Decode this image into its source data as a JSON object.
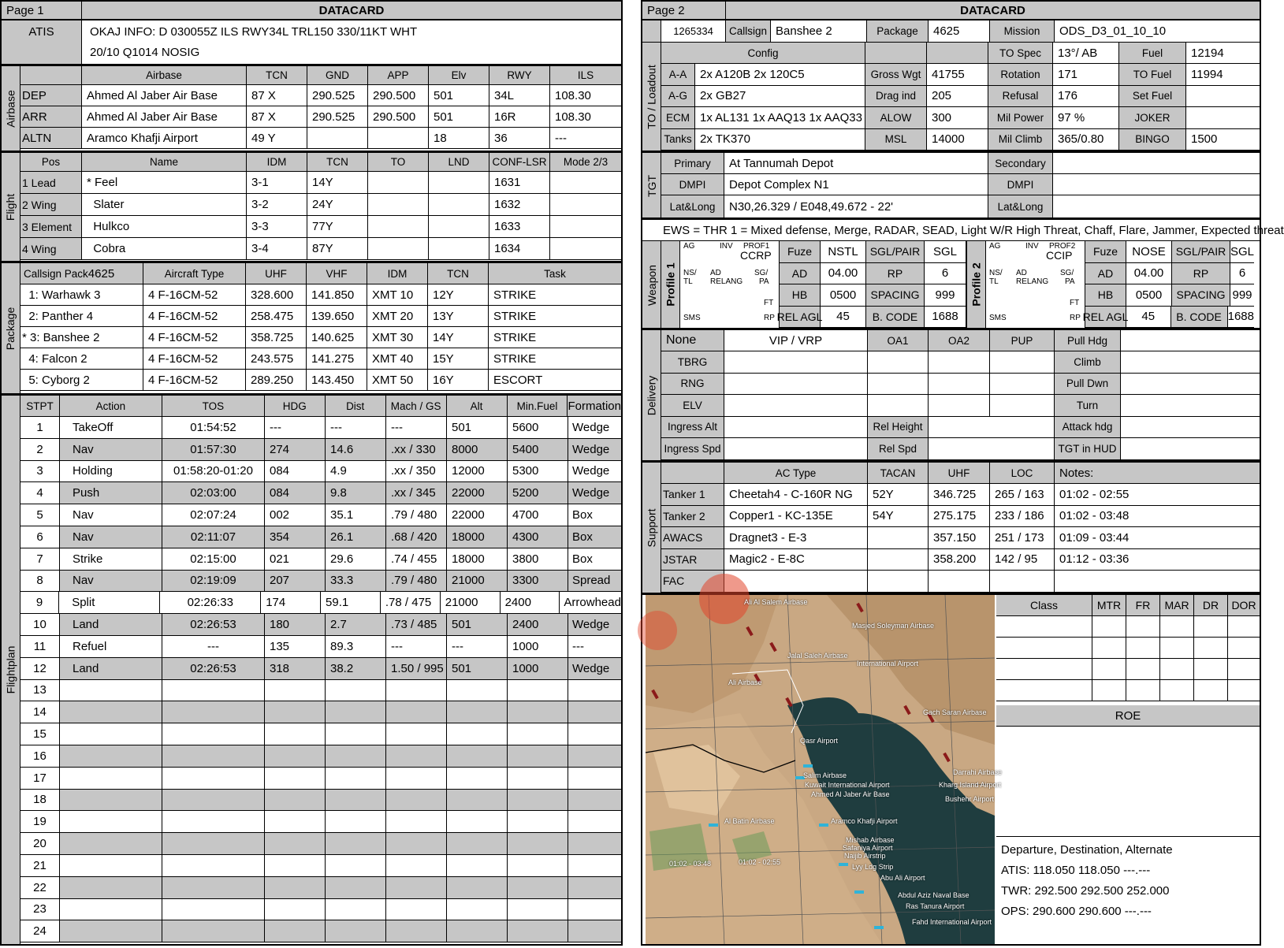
{
  "page1": {
    "page_label": "Page 1",
    "title": "DATACARD",
    "atis": {
      "label": "ATIS",
      "line1": "OKAJ INFO: D 030055Z ILS RWY34L TRL150 330/11KT WHT",
      "line2": "20/10 Q1014  NOSIG"
    },
    "airbase": {
      "section": "Airbase",
      "headers": [
        "",
        "Airbase",
        "TCN",
        "GND",
        "APP",
        "Elv",
        "RWY",
        "ILS"
      ],
      "rows": [
        [
          "DEP",
          "Ahmed Al Jaber Air Base",
          "87 X",
          "290.525",
          "290.500",
          "501",
          "34L",
          "108.30"
        ],
        [
          "ARR",
          "Ahmed Al Jaber Air Base",
          "87 X",
          "290.525",
          "290.500",
          "501",
          "16R",
          "108.30"
        ],
        [
          "ALTN",
          "Aramco Khafji Airport",
          "49 Y",
          "",
          "",
          "18",
          "36",
          "---"
        ]
      ]
    },
    "flight": {
      "section": "Flight",
      "headers": [
        "Pos",
        "Name",
        "IDM",
        "TCN",
        "TO",
        "LND",
        "CONF-LSR",
        "Mode 2/3"
      ],
      "rows": [
        [
          "1 Lead",
          "* Feel",
          "3-1",
          "14Y",
          "",
          "",
          "1631",
          ""
        ],
        [
          "2 Wing",
          "  Slater",
          "3-2",
          "24Y",
          "",
          "",
          "1632",
          ""
        ],
        [
          "3 Element",
          "  Hulkco",
          "3-3",
          "77Y",
          "",
          "",
          "1633",
          ""
        ],
        [
          "4 Wing",
          "  Cobra",
          "3-4",
          "87Y",
          "",
          "",
          "1634",
          ""
        ]
      ]
    },
    "package": {
      "section": "Package",
      "callsign_label": "Callsign Pack",
      "callsign_num": "4625",
      "headers": [
        "Aircraft Type",
        "UHF",
        "VHF",
        "IDM",
        "TCN",
        "Task"
      ],
      "rows": [
        [
          "  1: Warhawk 3",
          "4 F-16CM-52",
          "328.600",
          "141.850",
          "XMT 10",
          "12Y",
          "STRIKE"
        ],
        [
          "  2: Panther 4",
          "4 F-16CM-52",
          "258.475",
          "139.650",
          "XMT 20",
          "13Y",
          "STRIKE"
        ],
        [
          "* 3: Banshee 2",
          "4 F-16CM-52",
          "358.725",
          "140.625",
          "XMT 30",
          "14Y",
          "STRIKE"
        ],
        [
          "  4: Falcon 2",
          "4 F-16CM-52",
          "243.575",
          "141.275",
          "XMT 40",
          "15Y",
          "STRIKE"
        ],
        [
          "  5: Cyborg 2",
          "4 F-16CM-52",
          "289.250",
          "143.450",
          "XMT 50",
          "16Y",
          "ESCORT"
        ]
      ]
    },
    "flightplan": {
      "section": "Flightplan",
      "headers": [
        "STPT",
        "Action",
        "TOS",
        "HDG",
        "Dist",
        "Mach / GS",
        "Alt",
        "Min.Fuel",
        "Formation"
      ],
      "rows": [
        [
          "1",
          "TakeOff",
          "01:54:52",
          "---",
          "---",
          "---",
          "501",
          "5600",
          "Wedge"
        ],
        [
          "2",
          "Nav",
          "01:57:30",
          "274",
          "14.6",
          ".xx / 330",
          "8000",
          "5400",
          "Wedge"
        ],
        [
          "3",
          "Holding",
          "01:58:20-01:20",
          "084",
          "4.9",
          ".xx / 350",
          "12000",
          "5300",
          "Wedge"
        ],
        [
          "4",
          "Push",
          "02:03:00",
          "084",
          "9.8",
          ".xx / 345",
          "22000",
          "5200",
          "Wedge"
        ],
        [
          "5",
          "Nav",
          "02:07:24",
          "002",
          "35.1",
          ".79 / 480",
          "22000",
          "4700",
          "Box"
        ],
        [
          "6",
          "Nav",
          "02:11:07",
          "354",
          "26.1",
          ".68 / 420",
          "18000",
          "4300",
          "Box"
        ],
        [
          "7",
          "Strike",
          "02:15:00",
          "021",
          "29.6",
          ".74 / 455",
          "18000",
          "3800",
          "Box"
        ],
        [
          "8",
          "Nav",
          "02:19:09",
          "207",
          "33.3",
          ".79 / 480",
          "21000",
          "3300",
          "Spread"
        ],
        [
          "9",
          "Split",
          "02:26:33",
          "174",
          "59.1",
          ".78 / 475",
          "21000",
          "2400",
          "Arrowhead"
        ],
        [
          "10",
          "Land",
          "02:26:53",
          "180",
          "2.7",
          ".73 / 485",
          "501",
          "2400",
          "Wedge"
        ],
        [
          "11",
          "Refuel",
          "---",
          "135",
          "89.3",
          "---",
          "---",
          "1000",
          "---"
        ],
        [
          "12",
          "Land",
          "02:26:53",
          "318",
          "38.2",
          "1.50 / 995",
          "501",
          "1000",
          "Wedge"
        ],
        [
          "13",
          "",
          "",
          "",
          "",
          "",
          "",
          "",
          ""
        ],
        [
          "14",
          "",
          "",
          "",
          "",
          "",
          "",
          "",
          ""
        ],
        [
          "15",
          "",
          "",
          "",
          "",
          "",
          "",
          "",
          ""
        ],
        [
          "16",
          "",
          "",
          "",
          "",
          "",
          "",
          "",
          ""
        ],
        [
          "17",
          "",
          "",
          "",
          "",
          "",
          "",
          "",
          ""
        ],
        [
          "18",
          "",
          "",
          "",
          "",
          "",
          "",
          "",
          ""
        ],
        [
          "19",
          "",
          "",
          "",
          "",
          "",
          "",
          "",
          ""
        ],
        [
          "20",
          "",
          "",
          "",
          "",
          "",
          "",
          "",
          ""
        ],
        [
          "21",
          "",
          "",
          "",
          "",
          "",
          "",
          "",
          ""
        ],
        [
          "22",
          "",
          "",
          "",
          "",
          "",
          "",
          "",
          ""
        ],
        [
          "23",
          "",
          "",
          "",
          "",
          "",
          "",
          "",
          ""
        ],
        [
          "24",
          "",
          "",
          "",
          "",
          "",
          "",
          "",
          ""
        ]
      ]
    }
  },
  "page2": {
    "page_label": "Page 2",
    "title": "DATACARD",
    "header": {
      "id": "1265334",
      "callsign_label": "Callsign",
      "callsign": "Banshee 2",
      "package_label": "Package",
      "package": "4625",
      "mission_label": "Mission",
      "mission": "ODS_D3_01_10_10"
    },
    "loadout": {
      "section": "TO / Loadout",
      "config_label": "Config",
      "rows": [
        [
          "A-A",
          "2x A120B 2x 120C5",
          "Gross Wgt",
          "41755",
          "Rotation",
          "171",
          "TO Fuel",
          "11994"
        ],
        [
          "A-G",
          "2x GB27",
          "Drag ind",
          "205",
          "Refusal",
          "176",
          "Set Fuel",
          ""
        ],
        [
          "ECM",
          "1x AL131 1x AAQ13 1x AAQ33",
          "ALOW",
          "300",
          "Mil Power",
          "97 %",
          "JOKER",
          ""
        ],
        [
          "Tanks",
          "2x TK370",
          "MSL",
          "14000",
          "Mil Climb",
          "365/0.80",
          "BINGO",
          "1500"
        ]
      ],
      "to_spec_label": "TO Spec",
      "to_spec": "13°/ AB",
      "fuel_label": "Fuel",
      "fuel": "12194"
    },
    "tgt": {
      "section": "TGT",
      "primary_label": "Primary",
      "primary": "At Tannumah Depot",
      "dmpi_label": "DMPI",
      "dmpi": "Depot Complex N1",
      "latlong_label": "Lat&Long",
      "latlong": "N30,26.329 / E048,49.672 - 22'",
      "secondary_label": "Secondary",
      "dmpi2_label": "DMPI",
      "latlong2_label": "Lat&Long"
    },
    "ews": {
      "text": "EWS = THR 1 = Mixed defense, Merge, RADAR, SEAD, Light W/R High Threat, Chaff, Flare, Jammer, Expected threat"
    },
    "weapon": {
      "section": "Weapon",
      "p1": {
        "label": "Profile 1",
        "ag": "AG",
        "inv": "INV",
        "prof": "PROF1",
        "mode": "CCRP",
        "ns": "NS/",
        "tl": "TL",
        "ad": "AD",
        "relang": "RELANG",
        "sg": "SG/",
        "pa": "PA",
        "ft": "FT",
        "sms": "SMS",
        "rp": "RP",
        "fuze_label": "Fuze",
        "fuze": "NSTL",
        "sgl_label": "SGL/PAIR",
        "sgl": "SGL",
        "ad_label": "AD",
        "ad_val": "04.00",
        "rp_label": "RP",
        "rp_val": "6",
        "hb_label": "HB",
        "hb": "0500",
        "spacing_label": "SPACING",
        "spacing": "999",
        "relagl_label": "REL AGL",
        "relagl": "45",
        "bcode_label": "B. CODE",
        "bcode": "1688"
      },
      "p2": {
        "label": "Profile 2",
        "ag": "AG",
        "inv": "INV",
        "prof": "PROF2",
        "mode": "CCIP",
        "ns": "NS/",
        "tl": "TL",
        "ad": "AD",
        "relang": "RELANG",
        "sg": "SG/",
        "pa": "PA",
        "ft": "FT",
        "sms": "SMS",
        "rp": "RP",
        "fuze_label": "Fuze",
        "fuze": "NOSE",
        "sgl_label": "SGL/PAIR",
        "sgl": "SGL",
        "ad_label": "AD",
        "ad_val": "04.00",
        "rp_label": "RP",
        "rp_val": "6",
        "hb_label": "HB",
        "hb": "0500",
        "spacing_label": "SPACING",
        "spacing": "999",
        "relagl_label": "REL AGL",
        "relagl": "45",
        "bcode_label": "B. CODE",
        "bcode": "1688"
      }
    },
    "delivery": {
      "section": "Delivery",
      "none": "None",
      "vip": "VIP / VRP",
      "oa1": "OA1",
      "oa2": "OA2",
      "pup": "PUP",
      "pull_hdg": "Pull Hdg",
      "rows": [
        "TBRG",
        "RNG",
        "ELV",
        "Ingress Alt",
        "Ingress Spd"
      ],
      "right": [
        "Climb",
        "Pull Dwn",
        "Turn",
        "Attack hdg",
        "TGT in HUD"
      ],
      "rel_height": "Rel Height",
      "rel_spd": "Rel Spd"
    },
    "support": {
      "section": "Support",
      "headers": [
        "",
        "AC Type",
        "TACAN",
        "UHF",
        "LOC",
        "Notes:"
      ],
      "rows": [
        [
          "Tanker 1",
          "Cheetah4 - C-160R NG",
          "52Y",
          "346.725",
          "265 / 163",
          "01:02 - 02:55"
        ],
        [
          "Tanker 2",
          "Copper1 - KC-135E",
          "54Y",
          "275.175",
          "233 / 186",
          "01:02 - 03:48"
        ],
        [
          "AWACS",
          "Dragnet3 - E-3",
          "",
          "357.150",
          "251 / 173",
          "01:09 - 03:44"
        ],
        [
          "JSTAR",
          "Magic2 - E-8C",
          "",
          "358.200",
          "142 / 95",
          "01:12 - 03:36"
        ],
        [
          "FAC",
          "",
          "",
          "",
          "",
          ""
        ]
      ]
    },
    "threat": {
      "headers": [
        "Class",
        "MTR",
        "FR",
        "MAR",
        "DR",
        "DOR"
      ]
    },
    "roe": {
      "label": "ROE"
    },
    "comms": {
      "title": "Departure, Destination, Alternate",
      "atis": "ATIS: 118.050  118.050  ---.---",
      "twr": "TWR: 292.500  292.500  252.000",
      "ops": "OPS: 290.600  290.600  ---.---"
    },
    "map": {
      "labels": [
        "Ali Al Salem Airbase",
        "Masjed Soleyman Airbase",
        "Jalal Saleh Airbase",
        "International Airport",
        "Ali Airbase",
        "Qasr Airport",
        "Gach Saran Airbase",
        "Kuwait International Airport",
        "Ahmed Al Jaber Air Base",
        "Aramco Khafji Airport",
        "Al Batin Airbase",
        "Abu Ali Airport",
        "Abdul Aziz Naval Base",
        "Ras Tanura Airport",
        "Fahd International Airport",
        "Bushehr Airport",
        "Darrahi Airbase",
        "Kharg Island Airport",
        "Salim Airbase",
        "Mishab Airbase",
        "Safaniya Airport",
        "Naijib Airstrip",
        "Lyy Ldg Strip",
        "01:02 - 02:55",
        "01:02 - 03:48"
      ]
    }
  }
}
